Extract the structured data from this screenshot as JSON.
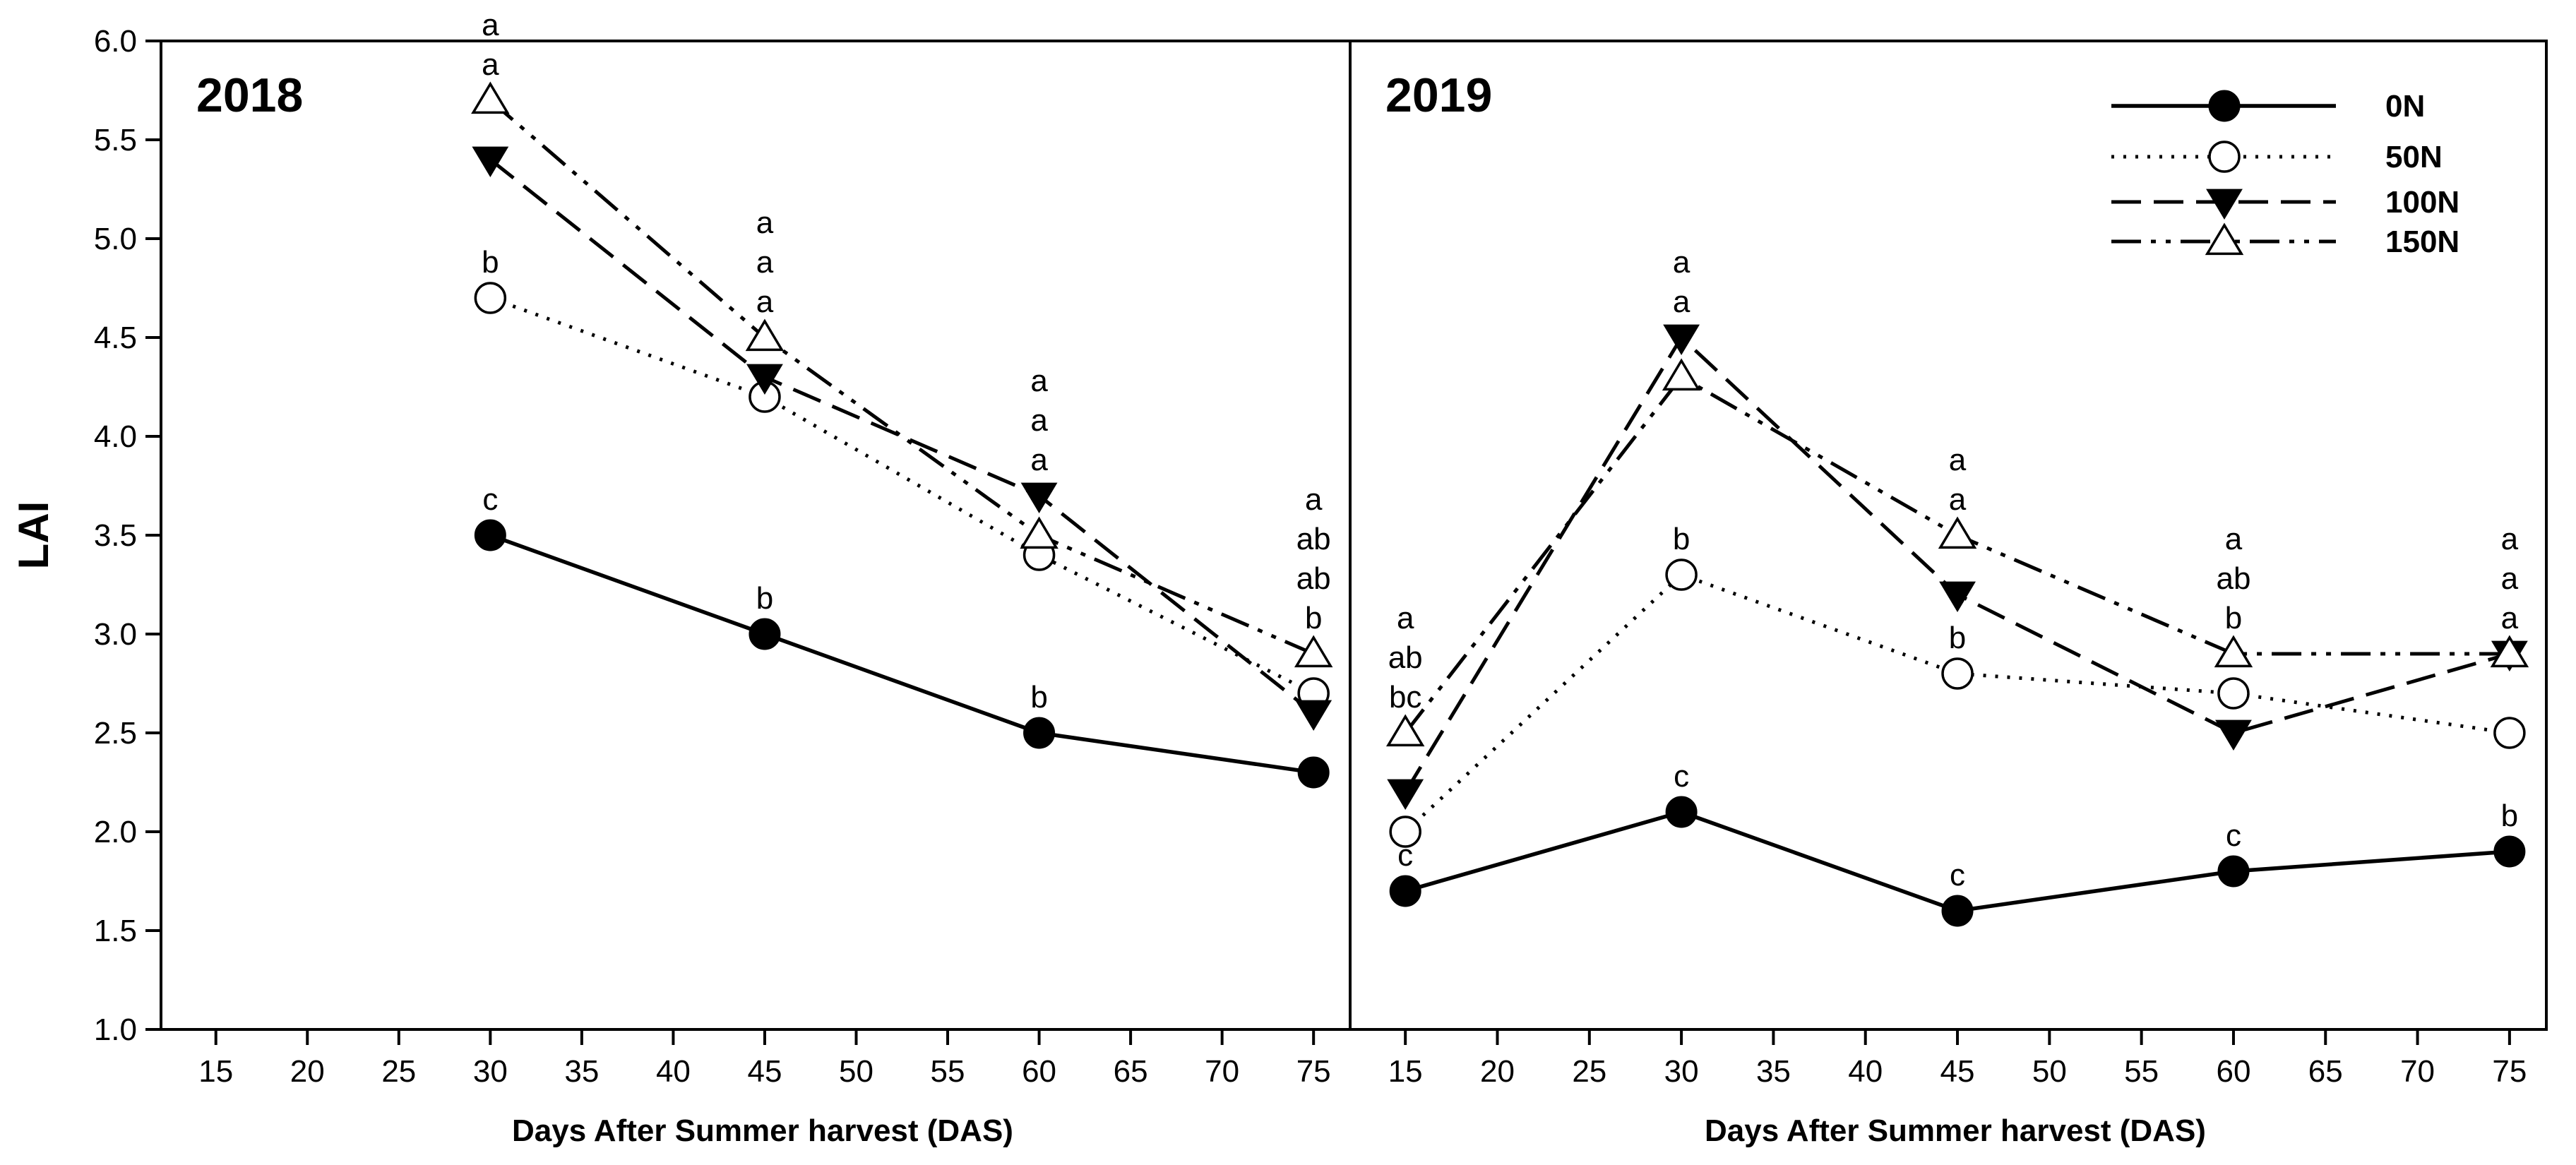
{
  "chart_data": {
    "type": "line",
    "ylabel": "LAI",
    "ylim": [
      1.0,
      6.0
    ],
    "yticks": [
      1.0,
      1.5,
      2.0,
      2.5,
      3.0,
      3.5,
      4.0,
      4.5,
      5.0,
      5.5,
      6.0
    ],
    "xlim": [
      12,
      77
    ],
    "xticks": [
      15,
      20,
      25,
      30,
      35,
      40,
      45,
      50,
      55,
      60,
      65,
      70,
      75
    ],
    "xlabel": "Days After Summer harvest (DAS)",
    "legend_position": "top-right of right panel",
    "series_styles": [
      {
        "name": "0N",
        "marker": "filled-circle",
        "line": "solid"
      },
      {
        "name": "50N",
        "marker": "open-circle",
        "line": "dotted"
      },
      {
        "name": "100N",
        "marker": "filled-triangle-down",
        "line": "dashed"
      },
      {
        "name": "150N",
        "marker": "open-triangle-up",
        "line": "dash-dot-dot"
      }
    ],
    "panels": [
      {
        "title": "2018",
        "xlabel": "Days After Summer harvest (DAS)",
        "x": [
          30,
          45,
          60,
          75
        ],
        "series": [
          {
            "name": "0N",
            "values": [
              3.5,
              3.0,
              2.5,
              2.3
            ]
          },
          {
            "name": "50N",
            "values": [
              4.7,
              4.2,
              3.4,
              2.7
            ]
          },
          {
            "name": "100N",
            "values": [
              5.4,
              4.3,
              3.7,
              2.6
            ]
          },
          {
            "name": "150N",
            "values": [
              5.7,
              4.5,
              3.5,
              2.9
            ]
          }
        ],
        "annotations": [
          {
            "x": 30,
            "y": 3.5,
            "lines": [
              "c"
            ]
          },
          {
            "x": 30,
            "y": 4.7,
            "lines": [
              "b"
            ]
          },
          {
            "x": 30,
            "y": 5.7,
            "lines": [
              "a",
              "a"
            ]
          },
          {
            "x": 45,
            "y": 3.0,
            "lines": [
              "b"
            ]
          },
          {
            "x": 45,
            "y": 4.5,
            "lines": [
              "a",
              "a",
              "a"
            ]
          },
          {
            "x": 60,
            "y": 2.5,
            "lines": [
              "b"
            ]
          },
          {
            "x": 60,
            "y": 3.7,
            "lines": [
              "a",
              "a",
              "a"
            ]
          },
          {
            "x": 75,
            "y": 2.9,
            "lines": [
              "a",
              "ab",
              "ab",
              "b"
            ]
          }
        ]
      },
      {
        "title": "2019",
        "xlabel": "Days After Summer harvest (DAS)",
        "x": [
          15,
          30,
          45,
          60,
          75
        ],
        "series": [
          {
            "name": "0N",
            "values": [
              1.7,
              2.1,
              1.6,
              1.8,
              1.9
            ]
          },
          {
            "name": "50N",
            "values": [
              2.0,
              3.3,
              2.8,
              2.7,
              2.5
            ]
          },
          {
            "name": "100N",
            "values": [
              2.2,
              4.5,
              3.2,
              2.5,
              2.9
            ]
          },
          {
            "name": "150N",
            "values": [
              2.5,
              4.3,
              3.5,
              2.9,
              2.9
            ]
          }
        ],
        "annotations": [
          {
            "x": 15,
            "y": 1.7,
            "lines": [
              "c"
            ]
          },
          {
            "x": 15,
            "y": 2.5,
            "lines": [
              "a",
              "ab",
              "bc"
            ]
          },
          {
            "x": 30,
            "y": 2.1,
            "lines": [
              "c"
            ]
          },
          {
            "x": 30,
            "y": 3.3,
            "lines": [
              "b"
            ]
          },
          {
            "x": 30,
            "y": 4.5,
            "lines": [
              "a",
              "a"
            ]
          },
          {
            "x": 45,
            "y": 1.6,
            "lines": [
              "c"
            ]
          },
          {
            "x": 45,
            "y": 2.8,
            "lines": [
              "b"
            ]
          },
          {
            "x": 45,
            "y": 3.5,
            "lines": [
              "a",
              "a"
            ]
          },
          {
            "x": 60,
            "y": 1.8,
            "lines": [
              "c"
            ]
          },
          {
            "x": 60,
            "y": 2.9,
            "lines": [
              "a",
              "ab",
              "b"
            ]
          },
          {
            "x": 75,
            "y": 1.9,
            "lines": [
              "b"
            ]
          },
          {
            "x": 75,
            "y": 2.9,
            "lines": [
              "a",
              "a",
              "a"
            ]
          }
        ]
      }
    ]
  }
}
